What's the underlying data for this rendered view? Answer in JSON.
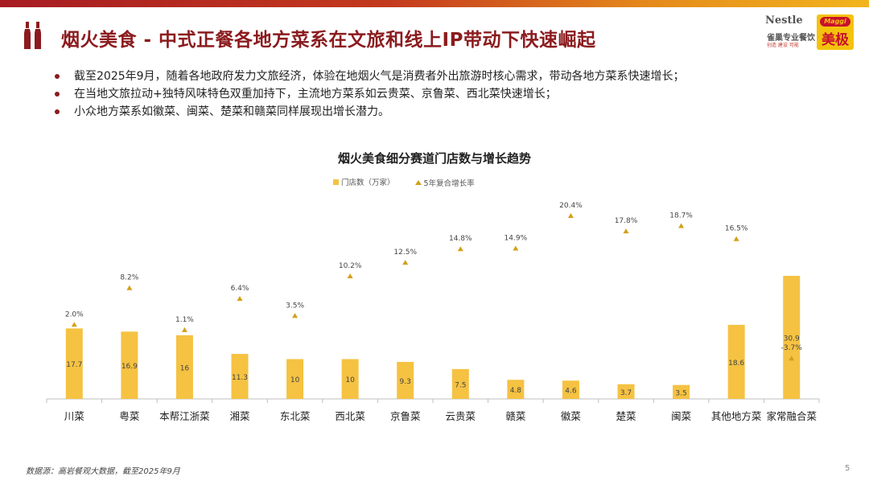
{
  "header": {
    "title": "烟火美食 - 中式正餐各地方菜系在文旅和线上IP带动下快速崛起",
    "logo_nestle": "Nestle",
    "logo_nestle_sub": "雀巢专业餐饮",
    "logo_nestle_sub2": "创造 建设 可能",
    "logo_maggi": "Maggi",
    "logo_maggi_cn": "美极"
  },
  "bullets": [
    "截至2025年9月，随着各地政府发力文旅经济，体验在地烟火气是消费者外出旅游时核心需求，带动各地方菜系快速增长；",
    "在当地文旅拉动+独特风味特色双重加持下，主流地方菜系如云贵菜、京鲁菜、西北菜快速增长；",
    "小众地方菜系如徽菜、闽菜、楚菜和赣菜同样展现出增长潜力。"
  ],
  "chart_data": {
    "type": "bar",
    "title": "烟火美食细分赛道门店数与增长趋势",
    "categories": [
      "川菜",
      "粤菜",
      "本帮江浙菜",
      "湘菜",
      "东北菜",
      "西北菜",
      "京鲁菜",
      "云贵菜",
      "赣菜",
      "徽菜",
      "楚菜",
      "闽菜",
      "其他地方菜",
      "家常融合菜"
    ],
    "series": [
      {
        "name": "门店数（万家）",
        "type": "bar",
        "values": [
          17.7,
          16.9,
          16.0,
          11.3,
          10.0,
          10.0,
          9.3,
          7.5,
          4.8,
          4.6,
          3.7,
          3.5,
          18.6,
          30.9
        ]
      },
      {
        "name": "5年复合增长率",
        "type": "marker",
        "values": [
          "2.0%",
          "8.2%",
          "1.1%",
          "6.4%",
          "3.5%",
          "10.2%",
          "12.5%",
          "14.8%",
          "14.9%",
          "20.4%",
          "17.8%",
          "18.7%",
          "16.5%",
          "-3.7%"
        ],
        "numeric": [
          2.0,
          8.2,
          1.1,
          6.4,
          3.5,
          10.2,
          12.5,
          14.8,
          14.9,
          20.4,
          17.8,
          18.7,
          16.5,
          -3.7
        ]
      }
    ],
    "legend_position": "top-center",
    "grid": false,
    "colors": {
      "bar": "#f5c242",
      "marker": "#d4a017",
      "axis": "#bfbfbf"
    }
  },
  "footer": {
    "source": "数据源：高岩餐观大数据，截至2025年9月",
    "page": "5"
  }
}
